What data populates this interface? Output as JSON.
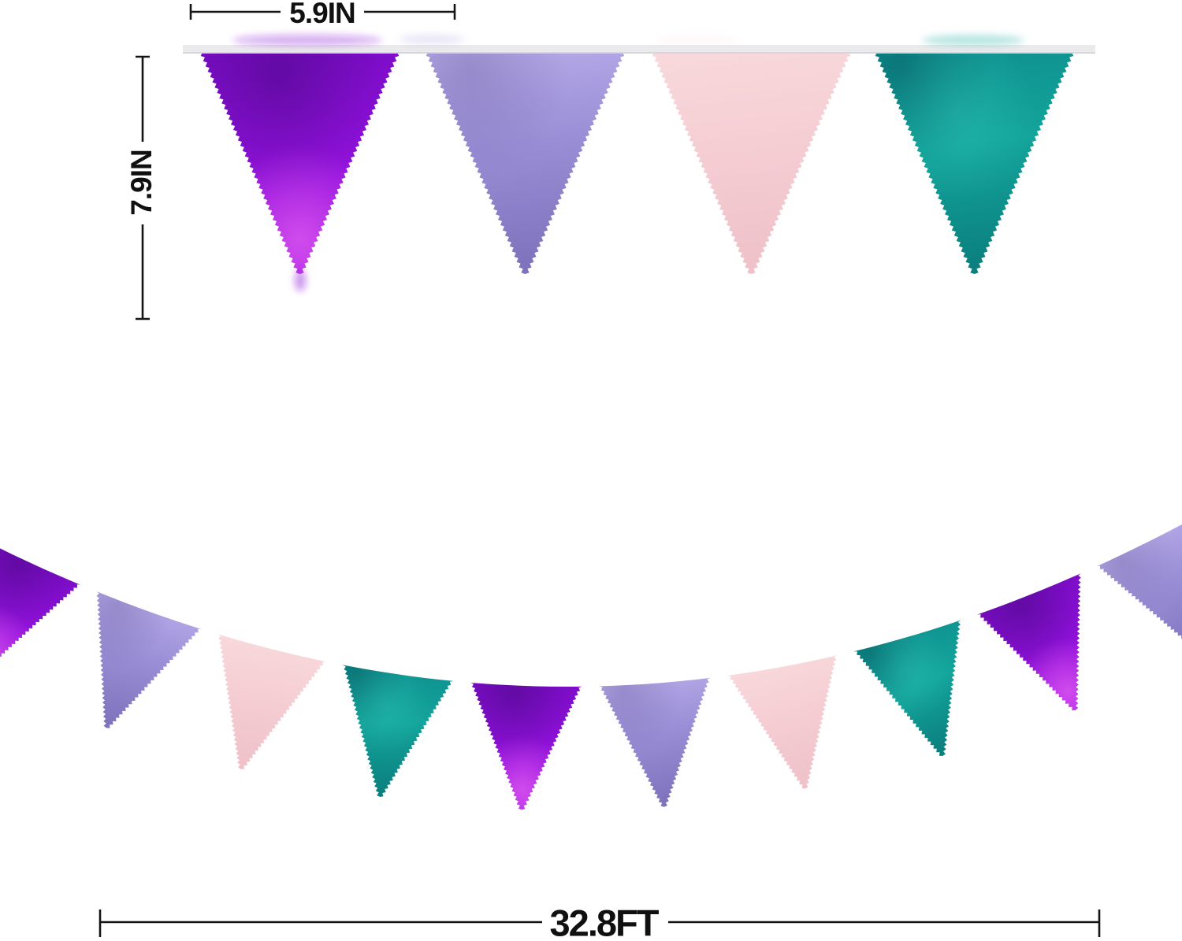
{
  "scene": {
    "background": "#ffffff",
    "annotation_color": "#141414"
  },
  "dimensions": {
    "flag_width": {
      "label": "5.9IN"
    },
    "flag_height": {
      "label": "7.9IN"
    },
    "banner_length": {
      "label": "32.8FT"
    }
  },
  "flag_colors": {
    "purple": {
      "top": "#7a0cc6",
      "mid": "#8d10d9",
      "bottom": "#a91ee6",
      "sparkle": "#ee6cf2",
      "shadow": "#3f0775"
    },
    "lavender": {
      "top": "#b7abe9",
      "mid": "#9a8ed6",
      "bottom": "#7e73bc",
      "shadow": "#5f5494"
    },
    "pink": {
      "top": "#f8d9dc",
      "mid": "#f5ced4",
      "bottom": "#efc1c9"
    },
    "teal": {
      "top": "#0e8f8f",
      "mid": "#13a49b",
      "bottom": "#0b807f",
      "highlight": "#33cdbd",
      "shadow": "#044d55"
    }
  },
  "top_banner": {
    "ribbon_color": "#eaeaec",
    "ribbon_edge_color": "#d2d2d7",
    "flags": [
      "purple",
      "lavender",
      "pink",
      "teal"
    ]
  },
  "garland": {
    "string_color": "#ffffff",
    "flags": [
      "purple",
      "lavender",
      "pink",
      "teal",
      "purple",
      "lavender",
      "pink",
      "teal",
      "purple",
      "lavender"
    ]
  }
}
